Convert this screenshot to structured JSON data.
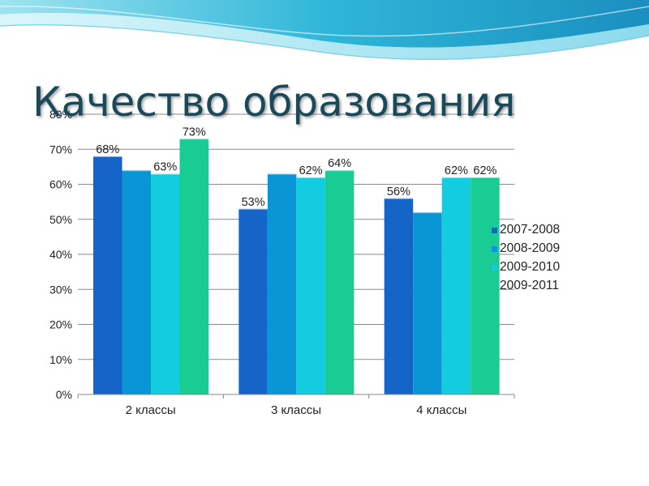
{
  "slide": {
    "title": "Качество образования"
  },
  "chart_data": {
    "type": "bar",
    "title": "",
    "xlabel": "",
    "ylabel": "",
    "categories": [
      "2 классы",
      "3 классы",
      "4 классы"
    ],
    "series": [
      {
        "name": "2007-2008",
        "values": [
          68,
          53,
          56
        ],
        "color": "#1565c8",
        "labels": [
          "68%",
          "53%",
          "56%"
        ]
      },
      {
        "name": "2008-2009",
        "values": [
          64,
          63,
          52
        ],
        "color": "#0a96d6",
        "labels": [
          "",
          "",
          ""
        ]
      },
      {
        "name": "2009-2010",
        "values": [
          63,
          62,
          62
        ],
        "color": "#14cce0",
        "labels": [
          "63%",
          "62%",
          "62%"
        ]
      },
      {
        "name": "2009-2011",
        "values": [
          73,
          64,
          62
        ],
        "color": "#18cc94",
        "labels": [
          "73%",
          "64%",
          "62%"
        ]
      }
    ],
    "ylim": [
      0,
      80
    ],
    "yticks": [
      0,
      10,
      20,
      30,
      40,
      50,
      60,
      70,
      80
    ],
    "ytick_labels": [
      "0%",
      "10%",
      "20%",
      "30%",
      "40%",
      "50%",
      "60%",
      "70%",
      "80%"
    ],
    "grid": true,
    "legend": "right"
  }
}
